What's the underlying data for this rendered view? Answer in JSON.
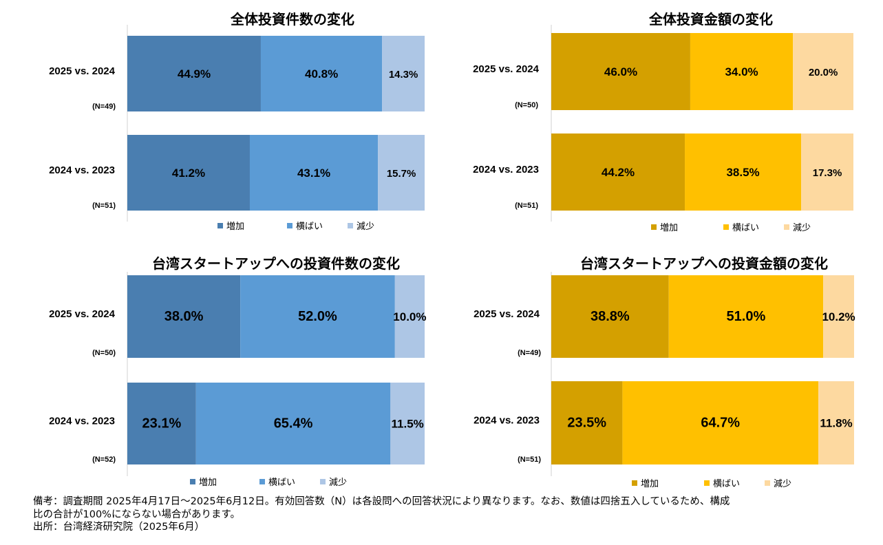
{
  "chart_data": [
    {
      "type": "bar",
      "orientation": "horizontal-stacked-100",
      "title": "全体投資件数の変化",
      "categories": [
        "2025 vs. 2024",
        "2024 vs. 2023"
      ],
      "sample_sizes": [
        "(N=49)",
        "(N=51)"
      ],
      "series": [
        {
          "name": "増加",
          "values": [
            44.9,
            41.2
          ],
          "labels": [
            "44.9%",
            "41.2%"
          ],
          "color": "#4a7eb0"
        },
        {
          "name": "横ばい",
          "values": [
            40.8,
            43.1
          ],
          "labels": [
            "40.8%",
            "43.1%"
          ],
          "color": "#5b9bd5"
        },
        {
          "name": "減少",
          "values": [
            14.3,
            15.7
          ],
          "labels": [
            "14.3%",
            "15.7%"
          ],
          "color": "#adc6e5"
        }
      ],
      "xlim": [
        0,
        100
      ],
      "legend": "bottom"
    },
    {
      "type": "bar",
      "orientation": "horizontal-stacked-100",
      "title": "全体投資金額の変化",
      "categories": [
        "2025 vs. 2024",
        "2024 vs. 2023"
      ],
      "sample_sizes": [
        "(N=50)",
        "(N=51)"
      ],
      "series": [
        {
          "name": "増加",
          "values": [
            46.0,
            44.2
          ],
          "labels": [
            "46.0%",
            "44.2%"
          ],
          "color": "#d4a000"
        },
        {
          "name": "横ばい",
          "values": [
            34.0,
            38.5
          ],
          "labels": [
            "34.0%",
            "38.5%"
          ],
          "color": "#ffc000"
        },
        {
          "name": "減少",
          "values": [
            20.0,
            17.3
          ],
          "labels": [
            "20.0%",
            "17.3%"
          ],
          "color": "#fdd9a0"
        }
      ],
      "xlim": [
        0,
        100
      ],
      "legend": "bottom"
    },
    {
      "type": "bar",
      "orientation": "horizontal-stacked-100",
      "title": "台湾スタートアップへの投資件数の変化",
      "categories": [
        "2025 vs. 2024",
        "2024 vs. 2023"
      ],
      "sample_sizes": [
        "(N=50)",
        "(N=52)"
      ],
      "series": [
        {
          "name": "増加",
          "values": [
            38.0,
            23.1
          ],
          "labels": [
            "38.0%",
            "23.1%"
          ],
          "color": "#4a7eb0"
        },
        {
          "name": "横ばい",
          "values": [
            52.0,
            65.4
          ],
          "labels": [
            "52.0%",
            "65.4%"
          ],
          "color": "#5b9bd5"
        },
        {
          "name": "減少",
          "values": [
            10.0,
            11.5
          ],
          "labels": [
            "10.0%",
            "11.5%"
          ],
          "color": "#adc6e5"
        }
      ],
      "xlim": [
        0,
        100
      ],
      "legend": "bottom"
    },
    {
      "type": "bar",
      "orientation": "horizontal-stacked-100",
      "title": "台湾スタートアップへの投資金額の変化",
      "categories": [
        "2025 vs. 2024",
        "2024 vs. 2023"
      ],
      "sample_sizes": [
        "(N=49)",
        "(N=51)"
      ],
      "series": [
        {
          "name": "増加",
          "values": [
            38.8,
            23.5
          ],
          "labels": [
            "38.8%",
            "23.5%"
          ],
          "color": "#d4a000"
        },
        {
          "name": "横ばい",
          "values": [
            51.0,
            64.7
          ],
          "labels": [
            "51.0%",
            "64.7%"
          ],
          "color": "#ffc000"
        },
        {
          "name": "減少",
          "values": [
            10.2,
            11.8
          ],
          "labels": [
            "10.2%",
            "11.8%"
          ],
          "color": "#fdd9a0"
        }
      ],
      "xlim": [
        0,
        100
      ],
      "legend": "bottom"
    }
  ],
  "notes": {
    "line1": "備考：調査期間 2025年4月17日～2025年6月12日。有効回答数（N）は各設問への回答状況により異なります。なお、数値は四捨五入しているため、構成",
    "line2": "比の合計が100%にならない場合があります。",
    "line3": "出所：台湾経済研究院（2025年6月）"
  }
}
